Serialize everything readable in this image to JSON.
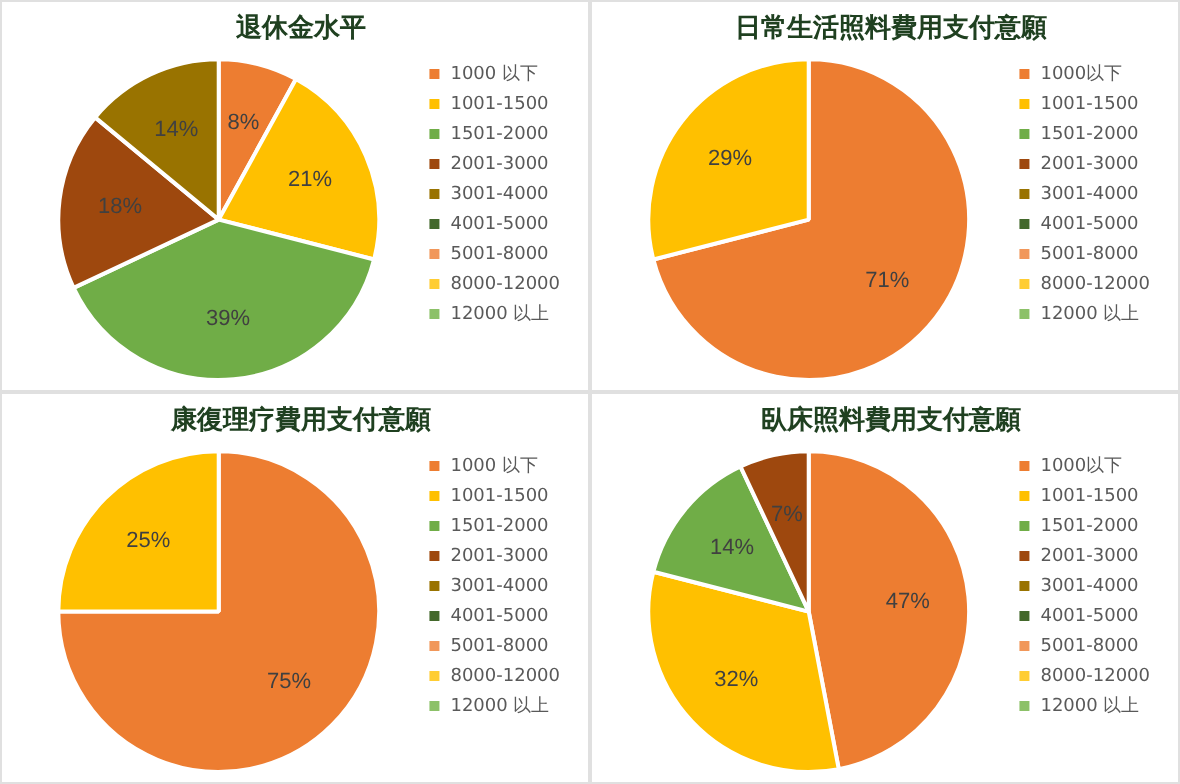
{
  "chart_data": [
    {
      "type": "pie",
      "title": "退休金水平",
      "categories": [
        "1000 以下",
        "1001-1500",
        "1501-2000",
        "2001-3000",
        "3001-4000",
        "4001-5000",
        "5001-8000",
        "8000-12000",
        "12000 以上"
      ],
      "values": [
        8,
        21,
        39,
        18,
        14,
        0,
        0,
        0,
        0
      ],
      "value_labels": [
        "8%",
        "21%",
        "39%",
        "18%",
        "14%",
        null,
        null,
        null,
        null
      ],
      "colors": [
        "#ed7d31",
        "#ffc000",
        "#70ad47",
        "#9e480e",
        "#997300",
        "#43682b",
        "#f1975a",
        "#ffcd33",
        "#8cc168"
      ],
      "legend": "right"
    },
    {
      "type": "pie",
      "title": "日常生活照料費用支付意願",
      "categories": [
        "1000以下",
        "1001-1500",
        "1501-2000",
        "2001-3000",
        "3001-4000",
        "4001-5000",
        "5001-8000",
        "8000-12000",
        "12000 以上"
      ],
      "values": [
        71,
        29,
        0,
        0,
        0,
        0,
        0,
        0,
        0
      ],
      "value_labels": [
        "71%",
        "29%",
        null,
        null,
        null,
        null,
        null,
        null,
        null
      ],
      "colors": [
        "#ed7d31",
        "#ffc000",
        "#70ad47",
        "#9e480e",
        "#997300",
        "#43682b",
        "#f1975a",
        "#ffcd33",
        "#8cc168"
      ],
      "legend": "right"
    },
    {
      "type": "pie",
      "title": "康復理疗費用支付意願",
      "categories": [
        "1000 以下",
        "1001-1500",
        "1501-2000",
        "2001-3000",
        "3001-4000",
        "4001-5000",
        "5001-8000",
        "8000-12000",
        "12000 以上"
      ],
      "values": [
        75,
        25,
        0,
        0,
        0,
        0,
        0,
        0,
        0
      ],
      "value_labels": [
        "75%",
        "25%",
        null,
        null,
        null,
        null,
        null,
        null,
        null
      ],
      "colors": [
        "#ed7d31",
        "#ffc000",
        "#70ad47",
        "#9e480e",
        "#997300",
        "#43682b",
        "#f1975a",
        "#ffcd33",
        "#8cc168"
      ],
      "legend": "right"
    },
    {
      "type": "pie",
      "title": "臥床照料費用支付意願",
      "categories": [
        "1000以下",
        "1001-1500",
        "1501-2000",
        "2001-3000",
        "3001-4000",
        "4001-5000",
        "5001-8000",
        "8000-12000",
        "12000 以上"
      ],
      "values": [
        47,
        32,
        14,
        7,
        0,
        0,
        0,
        0,
        0
      ],
      "value_labels": [
        "47%",
        "32%",
        "14%",
        "7%",
        null,
        null,
        null,
        null,
        null
      ],
      "colors": [
        "#ed7d31",
        "#ffc000",
        "#70ad47",
        "#9e480e",
        "#997300",
        "#43682b",
        "#f1975a",
        "#ffcd33",
        "#8cc168"
      ],
      "legend": "right"
    }
  ]
}
